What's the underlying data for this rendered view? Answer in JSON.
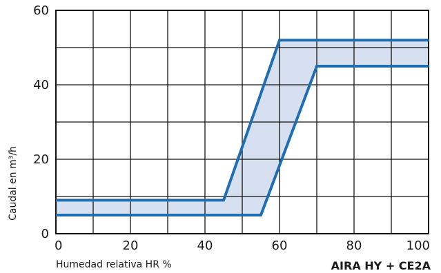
{
  "chart_data": {
    "type": "area",
    "title": "",
    "xlabel": "Humedad relativa HR %",
    "ylabel": "Caudal en m³/h",
    "model_label": "AIRA HY + CE2A",
    "xlim": [
      0,
      100
    ],
    "ylim": [
      0,
      60
    ],
    "x_ticks": [
      0,
      20,
      40,
      60,
      80,
      100
    ],
    "y_ticks": [
      0,
      20,
      40,
      60
    ],
    "x_gridlines": [
      0,
      10,
      20,
      30,
      40,
      50,
      60,
      70,
      80,
      90,
      100
    ],
    "y_gridlines": [
      0,
      10,
      20,
      30,
      40,
      50,
      60
    ],
    "grid": true,
    "series": [
      {
        "x": [
          0,
          45,
          60,
          100
        ],
        "y": [
          9,
          9,
          52,
          52
        ]
      },
      {
        "x": [
          0,
          55,
          70,
          100
        ],
        "y": [
          5,
          5,
          45,
          45
        ]
      }
    ],
    "colors": {
      "line": "#1f6db3",
      "band_fill": "#d6e0f0",
      "grid": "#111111"
    }
  }
}
